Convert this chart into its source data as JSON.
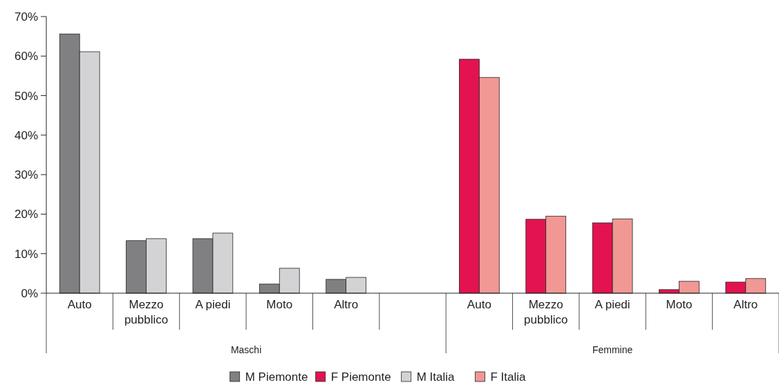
{
  "chart_data": {
    "type": "bar",
    "categories": [
      "Auto",
      "Mezzo pubblico",
      "A piedi",
      "Moto",
      "Altro",
      null,
      "Auto",
      "Mezzo pubblico",
      "A piedi",
      "Moto",
      "Altro"
    ],
    "series": [
      {
        "name": "M Piemonte",
        "color": "#808083",
        "values": [
          65.6,
          13.3,
          13.8,
          2.3,
          3.5,
          null,
          null,
          null,
          null,
          null,
          null
        ]
      },
      {
        "name": "F Piemonte",
        "color": "#e3134f",
        "values": [
          null,
          null,
          null,
          null,
          null,
          null,
          59.2,
          18.7,
          17.8,
          0.9,
          2.8
        ]
      },
      {
        "name": "M Italia",
        "color": "#d3d3d5",
        "values": [
          61.1,
          13.8,
          15.2,
          6.3,
          4.0,
          null,
          null,
          null,
          null,
          null,
          null
        ]
      },
      {
        "name": "F Italia",
        "color": "#f19894",
        "values": [
          null,
          null,
          null,
          null,
          null,
          null,
          54.6,
          19.5,
          18.8,
          3.0,
          3.7
        ]
      }
    ],
    "ylim": [
      0,
      70
    ],
    "yticks": [
      {
        "value": 0,
        "label": "0%"
      },
      {
        "value": 10,
        "label": "10%"
      },
      {
        "value": 20,
        "label": "20%"
      },
      {
        "value": 30,
        "label": "30%"
      },
      {
        "value": 40,
        "label": "40%"
      },
      {
        "value": 50,
        "label": "50%"
      },
      {
        "value": 60,
        "label": "60%"
      },
      {
        "value": 70,
        "label": "70%"
      }
    ],
    "annotations": [
      "Maschi",
      "Femmine"
    ],
    "legend": "bottom"
  }
}
